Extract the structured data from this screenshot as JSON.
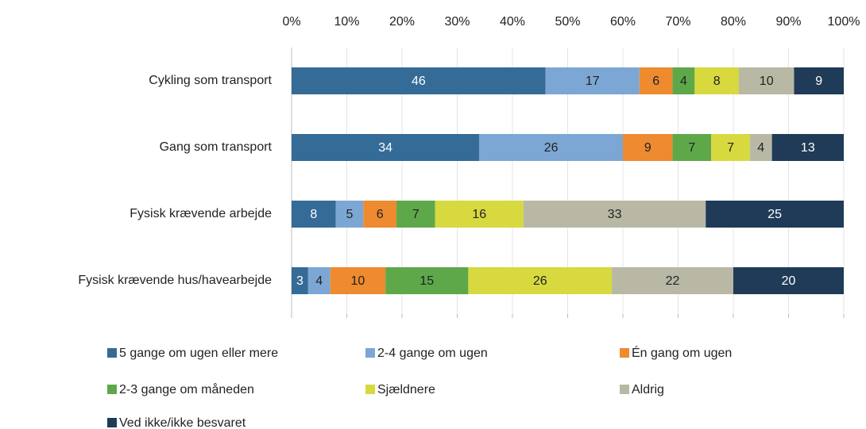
{
  "chart_data": {
    "type": "stacked_barh",
    "categories": [
      "Cykling som transport",
      "Gang som transport",
      "Fysisk krævende arbejde",
      "Fysisk krævende hus/havearbejde"
    ],
    "series": [
      {
        "name": "5 gange om ugen eller mere",
        "color": "#346b97",
        "label_color": "#ffffff",
        "values": [
          46,
          34,
          8,
          3
        ]
      },
      {
        "name": "2-4 gange om ugen",
        "color": "#7ca7d4",
        "label_color": "#222222",
        "values": [
          17,
          26,
          5,
          4
        ]
      },
      {
        "name": "Én gang om ugen",
        "color": "#ee8a2f",
        "label_color": "#222222",
        "values": [
          6,
          9,
          6,
          10
        ]
      },
      {
        "name": "2-3 gange om måneden",
        "color": "#5ea84a",
        "label_color": "#222222",
        "values": [
          4,
          7,
          7,
          15
        ]
      },
      {
        "name": "Sjældnere",
        "color": "#d7d93f",
        "label_color": "#222222",
        "values": [
          8,
          7,
          16,
          26
        ]
      },
      {
        "name": "Aldrig",
        "color": "#b8b8a5",
        "label_color": "#222222",
        "values": [
          10,
          4,
          33,
          22
        ]
      },
      {
        "name": "Ved ikke/ikke besvaret",
        "color": "#1f3b57",
        "label_color": "#ffffff",
        "values": [
          9,
          13,
          25,
          20
        ]
      }
    ],
    "xlim": [
      0,
      100
    ],
    "xticks": [
      {
        "value": 0,
        "label": "0%"
      },
      {
        "value": 10,
        "label": "10%"
      },
      {
        "value": 20,
        "label": "20%"
      },
      {
        "value": 30,
        "label": "30%"
      },
      {
        "value": 40,
        "label": "40%"
      },
      {
        "value": 50,
        "label": "50%"
      },
      {
        "value": 60,
        "label": "60%"
      },
      {
        "value": 70,
        "label": "70%"
      },
      {
        "value": 80,
        "label": "80%"
      },
      {
        "value": 90,
        "label": "90%"
      },
      {
        "value": 100,
        "label": "100%"
      }
    ],
    "grid": true,
    "legend": "bottom"
  }
}
